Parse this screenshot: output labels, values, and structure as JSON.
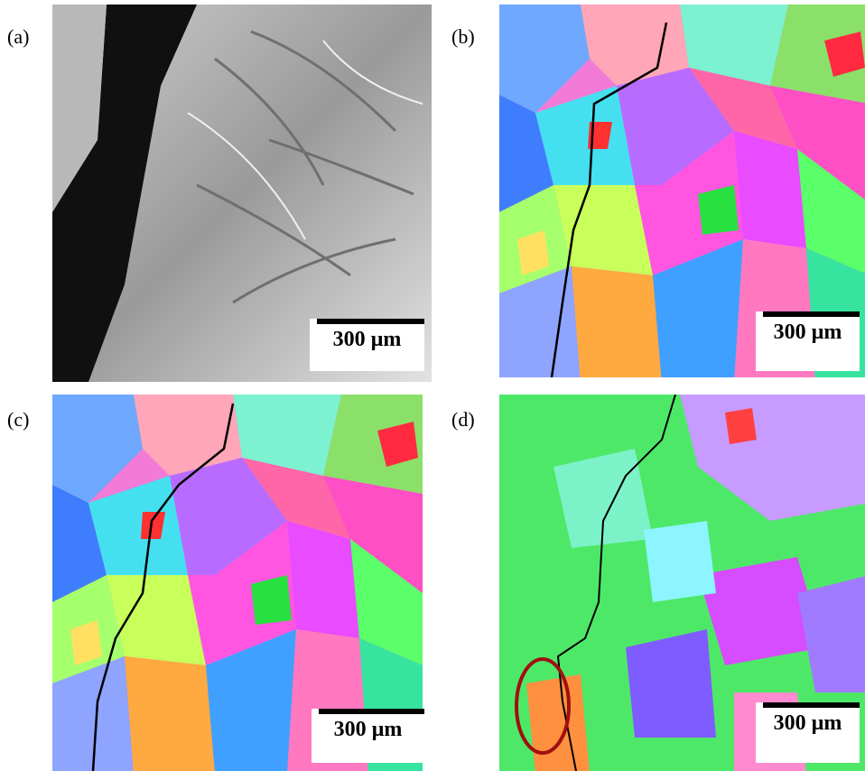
{
  "panels": [
    {
      "label": "(a)",
      "scale_bar": "300 µm"
    },
    {
      "label": "(b)",
      "scale_bar": "300 µm"
    },
    {
      "label": "(c)",
      "scale_bar": "300 µm"
    },
    {
      "label": "(d)",
      "scale_bar": "300 µm"
    }
  ]
}
